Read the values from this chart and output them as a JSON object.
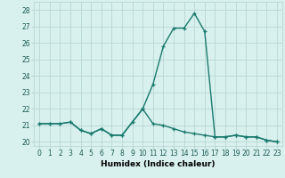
{
  "x": [
    0,
    1,
    2,
    3,
    4,
    5,
    6,
    7,
    8,
    9,
    10,
    11,
    12,
    13,
    14,
    15,
    16,
    17,
    18,
    19,
    20,
    21,
    22,
    23
  ],
  "y_main": [
    21.1,
    21.1,
    21.1,
    21.2,
    20.7,
    20.5,
    20.8,
    20.4,
    20.4,
    21.2,
    22.0,
    23.5,
    25.8,
    26.9,
    26.9,
    27.8,
    26.7,
    20.3,
    20.3,
    20.4,
    20.3,
    20.3,
    20.1,
    20.0
  ],
  "y_secondary": [
    21.1,
    21.1,
    21.1,
    21.2,
    20.7,
    20.5,
    20.8,
    20.4,
    20.4,
    21.2,
    22.0,
    21.1,
    21.0,
    20.8,
    20.6,
    20.5,
    20.4,
    20.3,
    20.3,
    20.4,
    20.3,
    20.3,
    20.1,
    20.0
  ],
  "line_color": "#1a7a6e",
  "bg_color": "#d8f0ee",
  "grid_color": "#b8d8d4",
  "xlabel": "Humidex (Indice chaleur)",
  "xlim": [
    -0.5,
    23.5
  ],
  "ylim": [
    19.75,
    28.5
  ],
  "yticks": [
    20,
    21,
    22,
    23,
    24,
    25,
    26,
    27,
    28
  ],
  "xticks": [
    0,
    1,
    2,
    3,
    4,
    5,
    6,
    7,
    8,
    9,
    10,
    11,
    12,
    13,
    14,
    15,
    16,
    17,
    18,
    19,
    20,
    21,
    22,
    23
  ],
  "marker": "+",
  "markersize": 3.5,
  "linewidth": 1.0,
  "xlabel_fontsize": 6.5,
  "tick_fontsize": 5.5
}
